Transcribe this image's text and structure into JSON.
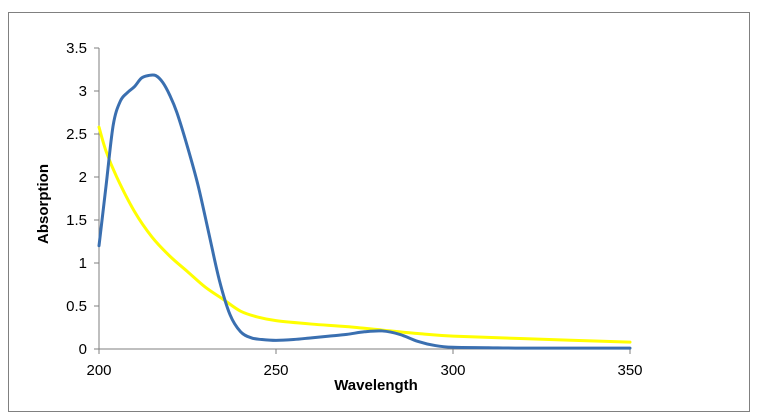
{
  "chart_data": {
    "type": "line",
    "title": "",
    "xlabel": "Wavelength",
    "ylabel": "Absorption",
    "xlim": [
      200,
      350
    ],
    "ylim": [
      0,
      3.5
    ],
    "x_ticks": [
      200,
      250,
      300,
      350
    ],
    "y_ticks": [
      0,
      0.5,
      1,
      1.5,
      2,
      2.5,
      3,
      3.5
    ],
    "x_tick_labels": [
      "200",
      "250",
      "300",
      "350"
    ],
    "y_tick_labels": [
      "0",
      "0.5",
      "1",
      "1.5",
      "2",
      "2.5",
      "3",
      "3.5"
    ],
    "grid": false,
    "legend": "none",
    "series": [
      {
        "color": "#FFFF00",
        "x": [
          200,
          202,
          205,
          210,
          215,
          220,
          225,
          230,
          235,
          240,
          245,
          250,
          260,
          270,
          280,
          290,
          300,
          320,
          350
        ],
        "y": [
          2.58,
          2.3,
          2.0,
          1.6,
          1.3,
          1.08,
          0.9,
          0.72,
          0.58,
          0.44,
          0.37,
          0.33,
          0.29,
          0.26,
          0.22,
          0.18,
          0.15,
          0.12,
          0.08
        ]
      },
      {
        "color": "#3A6FB0",
        "x": [
          200,
          202,
          204,
          206,
          208,
          210,
          212,
          214,
          216,
          218,
          220,
          222,
          225,
          228,
          231,
          234,
          237,
          240,
          243,
          246,
          250,
          255,
          260,
          265,
          270,
          275,
          280,
          285,
          290,
          295,
          300,
          310,
          320,
          350
        ],
        "y": [
          1.2,
          1.9,
          2.6,
          2.88,
          2.98,
          3.05,
          3.15,
          3.18,
          3.18,
          3.1,
          2.95,
          2.75,
          2.35,
          1.9,
          1.35,
          0.8,
          0.4,
          0.2,
          0.13,
          0.11,
          0.1,
          0.11,
          0.13,
          0.15,
          0.17,
          0.2,
          0.21,
          0.17,
          0.09,
          0.04,
          0.02,
          0.015,
          0.01,
          0.01
        ]
      }
    ]
  }
}
